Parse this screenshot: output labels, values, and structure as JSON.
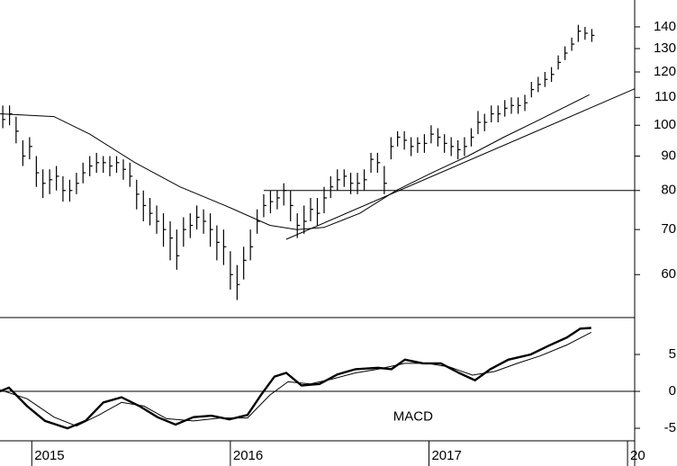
{
  "chart_data": [
    {
      "type": "ohlc",
      "log_scale": true,
      "color": "#000000",
      "xlim": [
        2014.84,
        2018.036
      ],
      "ylim": [
        51.8,
        153.5
      ],
      "yticks": [
        60,
        70,
        80,
        90,
        100,
        110,
        120,
        130,
        140
      ],
      "x": [
        2014.854,
        2014.888,
        2014.921,
        2014.955,
        2014.989,
        2015.023,
        2015.056,
        2015.09,
        2015.124,
        2015.157,
        2015.191,
        2015.225,
        2015.258,
        2015.292,
        2015.326,
        2015.36,
        2015.393,
        2015.427,
        2015.461,
        2015.494,
        2015.528,
        2015.562,
        2015.595,
        2015.629,
        2015.663,
        2015.697,
        2015.73,
        2015.764,
        2015.798,
        2015.831,
        2015.865,
        2015.899,
        2015.932,
        2015.966,
        2016.0,
        2016.034,
        2016.067,
        2016.101,
        2016.135,
        2016.168,
        2016.202,
        2016.236,
        2016.269,
        2016.303,
        2016.337,
        2016.371,
        2016.404,
        2016.438,
        2016.472,
        2016.505,
        2016.539,
        2016.573,
        2016.606,
        2016.64,
        2016.674,
        2016.708,
        2016.741,
        2016.775,
        2016.809,
        2016.842,
        2016.876,
        2016.91,
        2016.943,
        2016.977,
        2017.011,
        2017.045,
        2017.078,
        2017.112,
        2017.146,
        2017.179,
        2017.213,
        2017.247,
        2017.28,
        2017.314,
        2017.348,
        2017.382,
        2017.415,
        2017.449,
        2017.483,
        2017.516,
        2017.55,
        2017.584,
        2017.617,
        2017.651,
        2017.685,
        2017.719,
        2017.752,
        2017.786,
        2017.82
      ],
      "high": [
        107,
        107,
        103,
        95,
        96,
        90,
        86,
        86,
        87,
        84,
        83,
        85,
        88,
        90,
        91,
        90,
        90,
        90,
        89,
        88,
        83,
        80,
        78,
        76,
        74,
        72,
        70,
        73,
        74,
        76,
        75,
        74,
        71,
        70,
        65,
        62,
        66,
        70,
        75,
        79,
        80,
        80,
        82,
        80,
        74,
        76,
        78,
        78,
        81,
        84,
        86,
        86,
        85,
        85,
        86,
        91,
        91,
        87,
        96,
        98,
        98,
        96,
        96,
        97,
        100,
        99,
        97,
        96,
        95,
        96,
        99,
        105,
        104,
        107,
        107,
        109,
        110,
        110,
        111,
        116,
        118,
        120,
        122,
        127,
        131,
        135,
        141,
        140,
        139
      ],
      "low": [
        99,
        100,
        94,
        87,
        89,
        81,
        78,
        79,
        80,
        77,
        77,
        79,
        82,
        84,
        85,
        85,
        84,
        85,
        83,
        81,
        75,
        72,
        71,
        69,
        66,
        63,
        61,
        66,
        68,
        70,
        69,
        66,
        63,
        62,
        57,
        55,
        59,
        63,
        69,
        73,
        74,
        75,
        76,
        72,
        68,
        69,
        72,
        71,
        74,
        78,
        80,
        81,
        79,
        79,
        80,
        85,
        85,
        79,
        89,
        93,
        92,
        90,
        91,
        91,
        94,
        93,
        91,
        90,
        89,
        90,
        93,
        97,
        98,
        101,
        101,
        103,
        104,
        104,
        105,
        110,
        112,
        114,
        116,
        121,
        125,
        129,
        133,
        134,
        133
      ],
      "close": [
        102,
        104,
        98,
        90,
        93,
        85,
        82,
        83,
        84,
        80,
        80,
        82,
        85,
        87,
        88,
        88,
        87,
        88,
        86,
        84,
        79,
        76,
        74,
        72,
        70,
        68,
        64,
        70,
        71,
        73,
        72,
        70,
        67,
        66,
        60,
        58,
        63,
        66,
        72,
        76,
        77,
        78,
        80,
        76,
        71,
        72,
        75,
        74,
        78,
        81,
        83,
        84,
        82,
        82,
        83,
        89,
        88,
        82,
        93,
        96,
        95,
        93,
        94,
        94,
        97,
        96,
        94,
        93,
        92,
        93,
        96,
        101,
        101,
        104,
        104,
        106,
        107,
        107,
        108,
        113,
        115,
        117,
        119,
        124,
        128,
        132,
        138,
        137,
        136
      ],
      "lines": [
        {
          "x": [
            2014.84,
            2015.112,
            2015.293,
            2015.52,
            2015.746,
            2015.973,
            2016.199,
            2016.335,
            2016.471,
            2016.652,
            2016.834,
            2017.015,
            2017.196,
            2017.377,
            2017.559,
            2017.808
          ],
          "values": [
            104,
            103,
            97,
            88,
            81,
            76,
            71,
            70,
            70.5,
            74,
            80,
            85,
            90,
            96,
            102,
            111
          ]
        },
        {
          "x": [
            2016.281,
            2018.036
          ],
          "values": [
            67.7,
            113.3
          ]
        }
      ],
      "hline": {
        "value": 80,
        "x_start": 2016.168
      }
    },
    {
      "type": "line",
      "label": "MACD",
      "color": "#000000",
      "xlim": [
        2014.84,
        2018.036
      ],
      "ylim": [
        -6.7,
        10
      ],
      "yticks": [
        5,
        0,
        -5
      ],
      "hline": 0,
      "xticks": [
        2015,
        2016,
        2017,
        {
          "value": 2018,
          "label": "20"
        }
      ],
      "series": [
        {
          "width": 2.4,
          "x": [
            2014.84,
            2014.885,
            2014.976,
            2015.067,
            2015.18,
            2015.27,
            2015.361,
            2015.452,
            2015.542,
            2015.633,
            2015.724,
            2015.814,
            2015.905,
            2015.995,
            2016.086,
            2016.154,
            2016.222,
            2016.281,
            2016.358,
            2016.449,
            2016.539,
            2016.63,
            2016.743,
            2016.811,
            2016.879,
            2016.97,
            2017.06,
            2017.151,
            2017.232,
            2017.309,
            2017.4,
            2017.513,
            2017.604,
            2017.695,
            2017.762,
            2017.817
          ],
          "values": [
            0,
            0.5,
            -2,
            -4,
            -5,
            -4,
            -1.5,
            -0.8,
            -2,
            -3.5,
            -4.5,
            -3.5,
            -3.3,
            -3.8,
            -3.2,
            -0.5,
            2,
            2.5,
            0.8,
            1,
            2.3,
            3,
            3.2,
            3,
            4.3,
            3.8,
            3.8,
            2.5,
            1.5,
            3,
            4.3,
            5,
            6.2,
            7.3,
            8.5,
            8.6
          ]
        },
        {
          "width": 1,
          "x": [
            2014.84,
            2014.976,
            2015.112,
            2015.225,
            2015.338,
            2015.452,
            2015.565,
            2015.678,
            2015.814,
            2015.95,
            2016.086,
            2016.199,
            2016.29,
            2016.403,
            2016.517,
            2016.63,
            2016.743,
            2016.879,
            2016.992,
            2017.105,
            2017.219,
            2017.332,
            2017.445,
            2017.559,
            2017.695,
            2017.817
          ],
          "values": [
            0.2,
            -1,
            -3.5,
            -4.7,
            -3.2,
            -1.5,
            -2,
            -3.7,
            -4,
            -3.6,
            -3.6,
            -0.5,
            1.3,
            1,
            1.7,
            2.5,
            3,
            3.8,
            3.8,
            3.3,
            2.2,
            2.7,
            3.8,
            4.8,
            6.3,
            8
          ]
        }
      ]
    }
  ]
}
